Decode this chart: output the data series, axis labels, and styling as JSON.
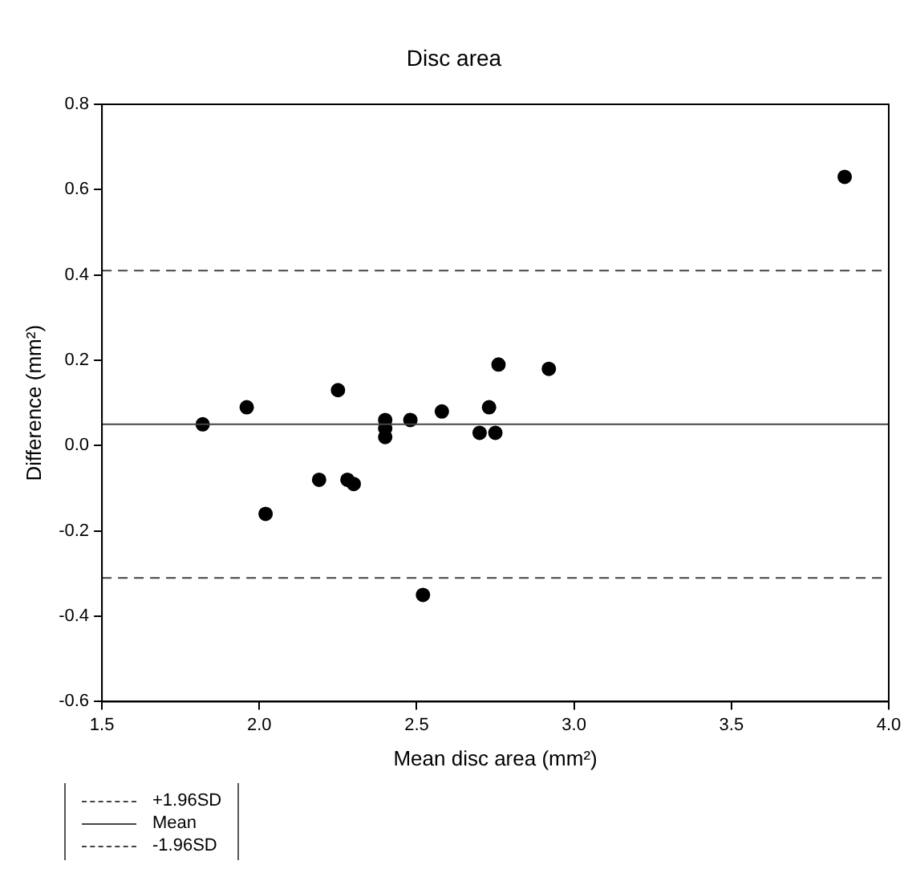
{
  "chart_data": {
    "type": "scatter",
    "title": "Disc area",
    "xlabel": "Mean disc area (mm²)",
    "ylabel": "Difference (mm²)",
    "x": [
      1.82,
      1.96,
      2.02,
      2.19,
      2.25,
      2.28,
      2.3,
      2.4,
      2.4,
      2.4,
      2.48,
      2.58,
      2.52,
      2.7,
      2.73,
      2.75,
      2.76,
      2.92,
      3.86
    ],
    "series": [
      {
        "color": "#000000",
        "values": [
          0.05,
          0.09,
          -0.16,
          -0.08,
          0.13,
          -0.08,
          -0.09,
          0.06,
          0.04,
          0.02,
          0.06,
          0.08,
          -0.35,
          0.03,
          0.09,
          0.03,
          0.19,
          0.18,
          0.63
        ]
      }
    ],
    "xlim": [
      1.5,
      4
    ],
    "xticks": [
      1.5,
      {
        "value": 2,
        "label": "2.0"
      },
      2.5,
      {
        "value": 3,
        "label": "3.0"
      },
      3.5,
      {
        "value": 4,
        "label": "4.0"
      }
    ],
    "ylim": [
      -0.6,
      0.8
    ],
    "yticks": [
      -0.6,
      -0.4,
      -0.2,
      {
        "value": 0,
        "label": "0.0"
      },
      0.2,
      0.4,
      0.6,
      0.8
    ],
    "ref_lines": [
      {
        "axis": "y",
        "value": 0.41,
        "label": "+1.96SD",
        "line_style": "dashed",
        "color": "#444444"
      },
      {
        "axis": "y",
        "value": 0.05,
        "label": "Mean",
        "line_style": "solid",
        "color": "#444444"
      },
      {
        "axis": "y",
        "value": -0.31,
        "label": "-1.96SD",
        "line_style": "dashed",
        "color": "#444444"
      }
    ],
    "marker": "circle",
    "grid": false,
    "legend": "bottom left"
  }
}
